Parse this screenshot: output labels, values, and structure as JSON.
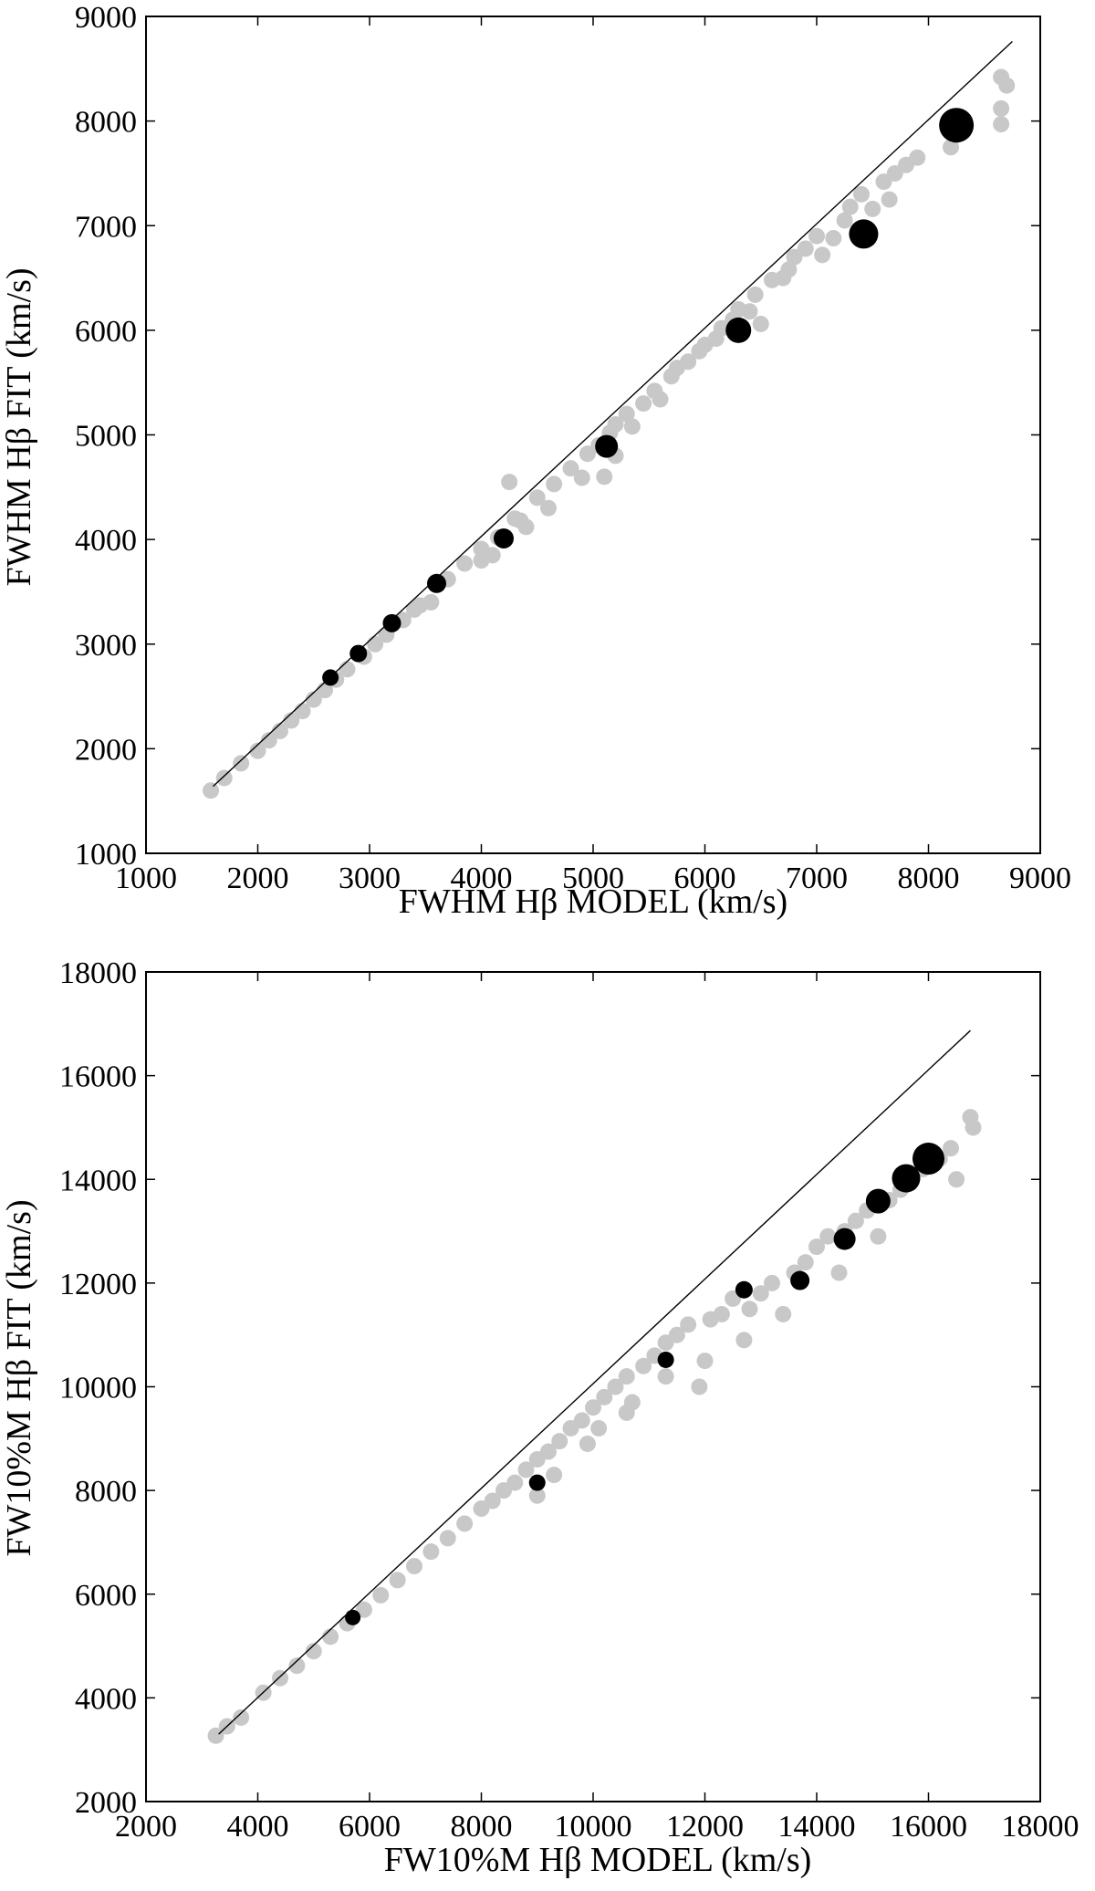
{
  "chart_data": [
    {
      "type": "scatter",
      "xlabel": "FWHM Hβ MODEL (km/s)",
      "ylabel": "FWHM Hβ FIT (km/s)",
      "xlim": [
        1000,
        9000
      ],
      "ylim": [
        1000,
        9000
      ],
      "xticks": [
        1000,
        2000,
        3000,
        4000,
        5000,
        6000,
        7000,
        8000,
        9000
      ],
      "yticks": [
        1000,
        2000,
        3000,
        4000,
        5000,
        6000,
        7000,
        8000,
        9000
      ],
      "reference_line": {
        "x": [
          1600,
          8750
        ],
        "y": [
          1640,
          8760
        ]
      },
      "series": [
        {
          "color": "#c8c8c8",
          "marker_size": 1,
          "points": [
            [
              1580,
              1600
            ],
            [
              1700,
              1720
            ],
            [
              1850,
              1860
            ],
            [
              2000,
              1980
            ],
            [
              2100,
              2080
            ],
            [
              2200,
              2170
            ],
            [
              2300,
              2270
            ],
            [
              2400,
              2360
            ],
            [
              2500,
              2470
            ],
            [
              2600,
              2560
            ],
            [
              2700,
              2660
            ],
            [
              2800,
              2760
            ],
            [
              2950,
              2880
            ],
            [
              3050,
              3000
            ],
            [
              3150,
              3090
            ],
            [
              3300,
              3230
            ],
            [
              3450,
              3370
            ],
            [
              3550,
              3400
            ],
            [
              3700,
              3620
            ],
            [
              3850,
              3770
            ],
            [
              4000,
              3910
            ],
            [
              4100,
              3850
            ],
            [
              4150,
              4020
            ],
            [
              4300,
              4200
            ],
            [
              4350,
              4180
            ],
            [
              4400,
              4120
            ],
            [
              4500,
              4400
            ],
            [
              4600,
              4300
            ],
            [
              4650,
              4530
            ],
            [
              4800,
              4680
            ],
            [
              4900,
              4590
            ],
            [
              4950,
              4820
            ],
            [
              5050,
              4900
            ],
            [
              5150,
              5020
            ],
            [
              5200,
              5100
            ],
            [
              5300,
              5200
            ],
            [
              5350,
              5080
            ],
            [
              5450,
              5300
            ],
            [
              5550,
              5420
            ],
            [
              5600,
              5340
            ],
            [
              5700,
              5560
            ],
            [
              5750,
              5640
            ],
            [
              5850,
              5700
            ],
            [
              5950,
              5800
            ],
            [
              6000,
              5860
            ],
            [
              6100,
              5920
            ],
            [
              6150,
              6020
            ],
            [
              6250,
              6100
            ],
            [
              6300,
              6200
            ],
            [
              6400,
              6180
            ],
            [
              6450,
              6340
            ],
            [
              6500,
              6060
            ],
            [
              6600,
              6480
            ],
            [
              6700,
              6500
            ],
            [
              6750,
              6580
            ],
            [
              6800,
              6700
            ],
            [
              6900,
              6780
            ],
            [
              7000,
              6900
            ],
            [
              7050,
              6720
            ],
            [
              7150,
              6880
            ],
            [
              7250,
              7050
            ],
            [
              7300,
              7180
            ],
            [
              7400,
              7300
            ],
            [
              7500,
              7160
            ],
            [
              7600,
              7420
            ],
            [
              7650,
              7250
            ],
            [
              7700,
              7500
            ],
            [
              7800,
              7580
            ],
            [
              7900,
              7650
            ],
            [
              8200,
              7750
            ],
            [
              8250,
              7900
            ],
            [
              8650,
              8420
            ],
            [
              8700,
              8340
            ],
            [
              8650,
              8120
            ],
            [
              8650,
              7970
            ],
            [
              4250,
              4550
            ],
            [
              4000,
              3800
            ],
            [
              3400,
              3330
            ],
            [
              5100,
              4600
            ],
            [
              5200,
              4800
            ]
          ]
        },
        {
          "color": "#000000",
          "marker_size": 2,
          "points": [
            [
              2650,
              2680
            ],
            [
              2900,
              2910
            ],
            [
              3200,
              3200
            ],
            [
              3600,
              3580
            ],
            [
              4200,
              4010
            ],
            [
              5120,
              4890
            ],
            [
              6300,
              6000
            ],
            [
              7420,
              6920
            ],
            [
              8250,
              7960
            ]
          ],
          "sizes": [
            14,
            15,
            16,
            17,
            18,
            21,
            24,
            28,
            34
          ]
        }
      ]
    },
    {
      "type": "scatter",
      "xlabel": "FW10%M Hβ MODEL (km/s)",
      "ylabel": "FW10%M Hβ FIT (km/s)",
      "xlim": [
        2000,
        18000
      ],
      "ylim": [
        2000,
        18000
      ],
      "xticks": [
        2000,
        4000,
        6000,
        8000,
        10000,
        12000,
        14000,
        16000,
        18000
      ],
      "yticks": [
        2000,
        4000,
        6000,
        8000,
        10000,
        12000,
        14000,
        16000,
        18000
      ],
      "reference_line": {
        "x": [
          3300,
          16750
        ],
        "y": [
          3300,
          16870
        ]
      },
      "series": [
        {
          "color": "#c8c8c8",
          "marker_size": 1,
          "points": [
            [
              3250,
              3270
            ],
            [
              3450,
              3450
            ],
            [
              3700,
              3620
            ],
            [
              4100,
              4100
            ],
            [
              4400,
              4380
            ],
            [
              4700,
              4620
            ],
            [
              5000,
              4900
            ],
            [
              5300,
              5180
            ],
            [
              5600,
              5440
            ],
            [
              5900,
              5700
            ],
            [
              6200,
              5980
            ],
            [
              6500,
              6270
            ],
            [
              6800,
              6540
            ],
            [
              7100,
              6820
            ],
            [
              7400,
              7080
            ],
            [
              7700,
              7360
            ],
            [
              8000,
              7650
            ],
            [
              8200,
              7800
            ],
            [
              8400,
              8000
            ],
            [
              8600,
              8150
            ],
            [
              8800,
              8400
            ],
            [
              9000,
              8600
            ],
            [
              9200,
              8750
            ],
            [
              9400,
              8950
            ],
            [
              9600,
              9200
            ],
            [
              9800,
              9350
            ],
            [
              9900,
              8900
            ],
            [
              10000,
              9600
            ],
            [
              10200,
              9800
            ],
            [
              10400,
              10000
            ],
            [
              10600,
              10200
            ],
            [
              10700,
              9700
            ],
            [
              10900,
              10400
            ],
            [
              11100,
              10600
            ],
            [
              11300,
              10850
            ],
            [
              11500,
              11000
            ],
            [
              11700,
              11200
            ],
            [
              11900,
              10000
            ],
            [
              12100,
              11300
            ],
            [
              12300,
              11400
            ],
            [
              12500,
              11700
            ],
            [
              12700,
              10900
            ],
            [
              12800,
              11500
            ],
            [
              13000,
              11800
            ],
            [
              13200,
              12000
            ],
            [
              13400,
              11400
            ],
            [
              13600,
              12200
            ],
            [
              13800,
              12400
            ],
            [
              14000,
              12700
            ],
            [
              14200,
              12900
            ],
            [
              14400,
              12200
            ],
            [
              14500,
              13000
            ],
            [
              14700,
              13200
            ],
            [
              14900,
              13400
            ],
            [
              15100,
              12900
            ],
            [
              15300,
              13600
            ],
            [
              15500,
              13800
            ],
            [
              15700,
              14000
            ],
            [
              15900,
              14200
            ],
            [
              16200,
              14400
            ],
            [
              16400,
              14600
            ],
            [
              16500,
              14000
            ],
            [
              16800,
              15000
            ],
            [
              16750,
              15200
            ],
            [
              9000,
              7900
            ],
            [
              9300,
              8300
            ],
            [
              10100,
              9200
            ],
            [
              10600,
              9500
            ],
            [
              11300,
              10200
            ],
            [
              12000,
              10500
            ]
          ]
        },
        {
          "color": "#000000",
          "marker_size": 2,
          "points": [
            [
              5700,
              5550
            ],
            [
              9000,
              8150
            ],
            [
              11300,
              10520
            ],
            [
              12700,
              11870
            ],
            [
              13700,
              12050
            ],
            [
              14500,
              12850
            ],
            [
              15100,
              13580
            ],
            [
              15600,
              14020
            ],
            [
              16000,
              14400
            ]
          ],
          "sizes": [
            13,
            14,
            14,
            15,
            17,
            20,
            23,
            27,
            31
          ]
        }
      ]
    }
  ]
}
